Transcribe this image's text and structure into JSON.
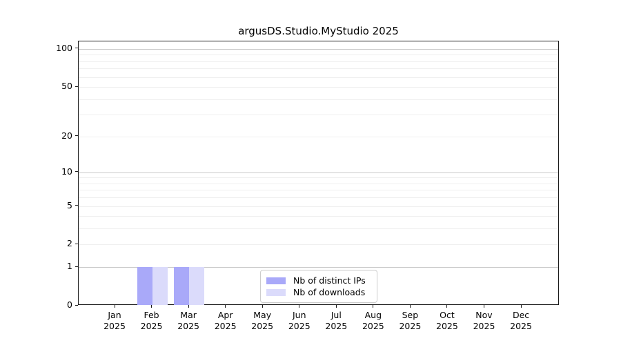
{
  "chart_data": {
    "type": "bar",
    "title": "argusDS.Studio.MyStudio 2025",
    "x_categories": [
      {
        "month": "Jan",
        "year": "2025"
      },
      {
        "month": "Feb",
        "year": "2025"
      },
      {
        "month": "Mar",
        "year": "2025"
      },
      {
        "month": "Apr",
        "year": "2025"
      },
      {
        "month": "May",
        "year": "2025"
      },
      {
        "month": "Jun",
        "year": "2025"
      },
      {
        "month": "Jul",
        "year": "2025"
      },
      {
        "month": "Aug",
        "year": "2025"
      },
      {
        "month": "Sep",
        "year": "2025"
      },
      {
        "month": "Oct",
        "year": "2025"
      },
      {
        "month": "Nov",
        "year": "2025"
      },
      {
        "month": "Dec",
        "year": "2025"
      }
    ],
    "series": [
      {
        "name": "Nb of distinct IPs",
        "color": "#a9a9f9",
        "values": [
          0,
          1,
          1,
          0,
          0,
          0,
          0,
          0,
          0,
          0,
          0,
          0
        ]
      },
      {
        "name": "Nb of downloads",
        "color": "#dbdbfb",
        "values": [
          0,
          1,
          1,
          0,
          0,
          0,
          0,
          0,
          0,
          0,
          0,
          0
        ]
      }
    ],
    "yticks": [
      0,
      1,
      2,
      5,
      10,
      20,
      50,
      100
    ],
    "y_minor_gridlines": [
      2,
      3,
      4,
      5,
      6,
      7,
      8,
      9,
      20,
      30,
      40,
      50,
      60,
      70,
      80,
      90
    ],
    "y_major_gridlines": [
      1,
      10,
      100
    ],
    "y_scale": "log1p",
    "ylim": [
      0,
      115
    ],
    "grid": "both",
    "legend_position": "lower center"
  },
  "colors": {
    "bar_distinct_ips": "#a9a9f9",
    "bar_downloads": "#dbdbfb",
    "grid_minor": "#efefef",
    "grid_major": "#c9c9c9",
    "spine": "#1a1a1a",
    "legend_border": "#cccccc",
    "text": "#000000"
  }
}
